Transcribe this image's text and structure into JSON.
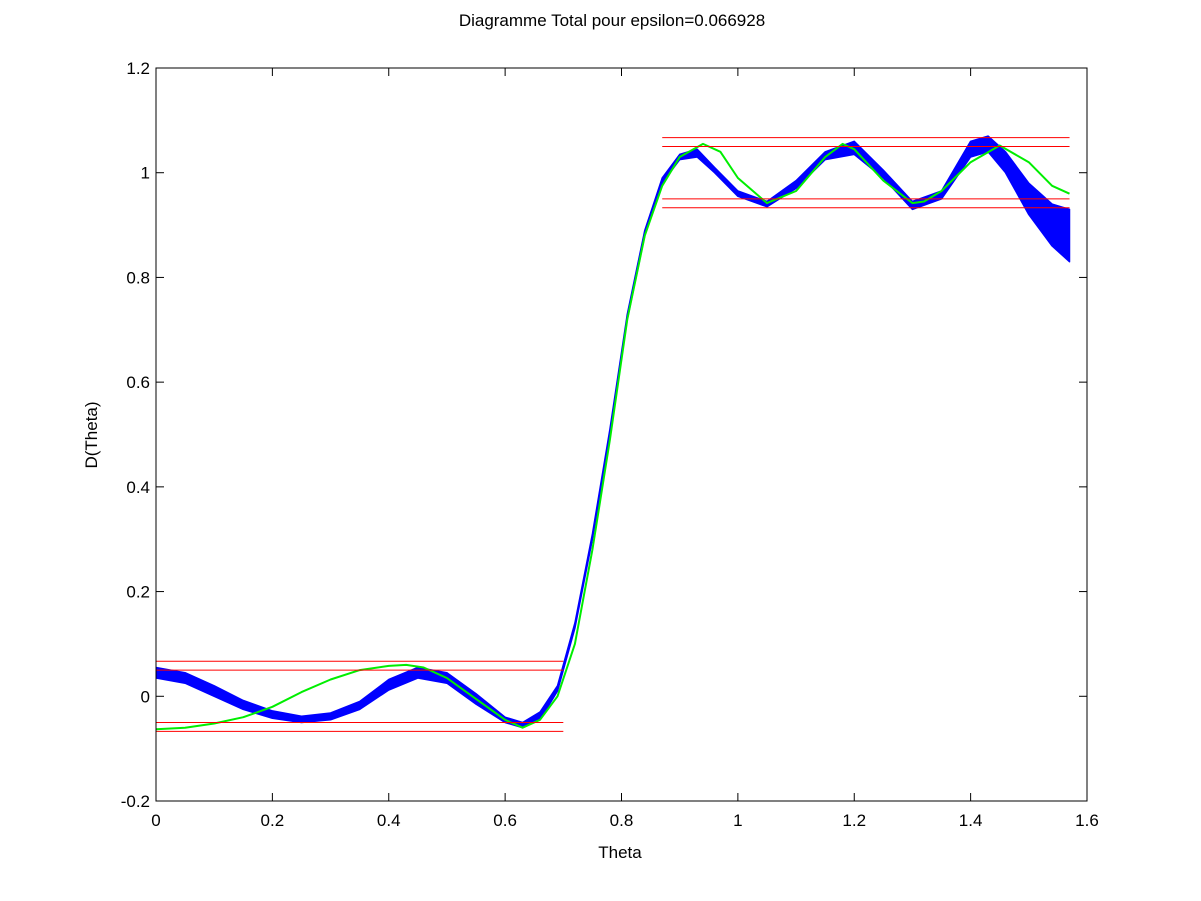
{
  "chart_data": {
    "type": "line",
    "title": "Diagramme Total pour epsilon=0.066928",
    "xlabel": "Theta",
    "ylabel": "D(Theta)",
    "xlim": [
      0,
      1.6
    ],
    "ylim": [
      -0.2,
      1.2
    ],
    "x_ticks": [
      "0",
      "0.2",
      "0.4",
      "0.6",
      "0.8",
      "1",
      "1.2",
      "1.4",
      "1.6"
    ],
    "y_ticks": [
      "-0.2",
      "0",
      "0.2",
      "0.4",
      "0.6",
      "0.8",
      "1",
      "1.2"
    ],
    "grid": false,
    "legend": null,
    "colors": {
      "blue": "#0000ff",
      "green": "#00ee00",
      "red": "#ff0000"
    },
    "series": [
      {
        "color": "blue",
        "style": "band",
        "note_count": "many overlapping curves",
        "x": [
          0.0,
          0.05,
          0.1,
          0.15,
          0.2,
          0.25,
          0.3,
          0.35,
          0.4,
          0.45,
          0.5,
          0.55,
          0.6,
          0.63,
          0.66,
          0.69,
          0.72,
          0.75,
          0.78,
          0.81,
          0.84,
          0.87,
          0.9,
          0.93,
          0.96,
          1.0,
          1.05,
          1.1,
          1.15,
          1.2,
          1.25,
          1.3,
          1.35,
          1.4,
          1.43,
          1.46,
          1.5,
          1.54,
          1.57
        ],
        "lower": [
          0.035,
          0.025,
          0.0,
          -0.025,
          -0.042,
          -0.05,
          -0.045,
          -0.025,
          0.012,
          0.035,
          0.025,
          -0.015,
          -0.05,
          -0.06,
          -0.045,
          0.01,
          0.13,
          0.3,
          0.5,
          0.72,
          0.88,
          0.98,
          1.025,
          1.03,
          1.0,
          0.955,
          0.935,
          0.97,
          1.025,
          1.035,
          0.99,
          0.93,
          0.95,
          1.03,
          1.04,
          1.0,
          0.92,
          0.86,
          0.83
        ],
        "upper": [
          0.055,
          0.045,
          0.02,
          -0.008,
          -0.028,
          -0.038,
          -0.032,
          -0.01,
          0.032,
          0.055,
          0.045,
          0.005,
          -0.04,
          -0.05,
          -0.03,
          0.02,
          0.14,
          0.31,
          0.51,
          0.73,
          0.89,
          0.99,
          1.035,
          1.045,
          1.01,
          0.965,
          0.945,
          0.985,
          1.04,
          1.06,
          1.005,
          0.945,
          0.965,
          1.06,
          1.07,
          1.04,
          0.98,
          0.94,
          0.93
        ]
      },
      {
        "color": "green",
        "style": "line",
        "x": [
          0.0,
          0.05,
          0.1,
          0.15,
          0.2,
          0.25,
          0.3,
          0.35,
          0.4,
          0.43,
          0.46,
          0.5,
          0.55,
          0.6,
          0.63,
          0.66,
          0.69,
          0.72,
          0.75,
          0.78,
          0.81,
          0.84,
          0.87,
          0.9,
          0.94,
          0.97,
          1.0,
          1.05,
          1.1,
          1.15,
          1.18,
          1.2,
          1.25,
          1.3,
          1.32,
          1.35,
          1.4,
          1.45,
          1.5,
          1.54,
          1.57
        ],
        "y": [
          -0.063,
          -0.06,
          -0.052,
          -0.04,
          -0.02,
          0.008,
          0.032,
          0.05,
          0.058,
          0.06,
          0.055,
          0.035,
          -0.005,
          -0.045,
          -0.06,
          -0.045,
          0.0,
          0.1,
          0.28,
          0.49,
          0.72,
          0.88,
          0.975,
          1.03,
          1.055,
          1.04,
          0.99,
          0.942,
          0.965,
          1.03,
          1.055,
          1.045,
          0.985,
          0.942,
          0.945,
          0.965,
          1.02,
          1.052,
          1.02,
          0.975,
          0.96
        ]
      }
    ],
    "reference_lines": [
      {
        "color": "red",
        "y": 0.067,
        "x_range": [
          0,
          0.7
        ]
      },
      {
        "color": "red",
        "y": 0.05,
        "x_range": [
          0,
          0.7
        ]
      },
      {
        "color": "red",
        "y": -0.05,
        "x_range": [
          0,
          0.7
        ]
      },
      {
        "color": "red",
        "y": -0.067,
        "x_range": [
          0,
          0.7
        ]
      },
      {
        "color": "red",
        "y": 1.067,
        "x_range": [
          0.87,
          1.57
        ]
      },
      {
        "color": "red",
        "y": 1.05,
        "x_range": [
          0.87,
          1.57
        ]
      },
      {
        "color": "red",
        "y": 0.95,
        "x_range": [
          0.87,
          1.57
        ]
      },
      {
        "color": "red",
        "y": 0.933,
        "x_range": [
          0.87,
          1.57
        ]
      }
    ]
  }
}
